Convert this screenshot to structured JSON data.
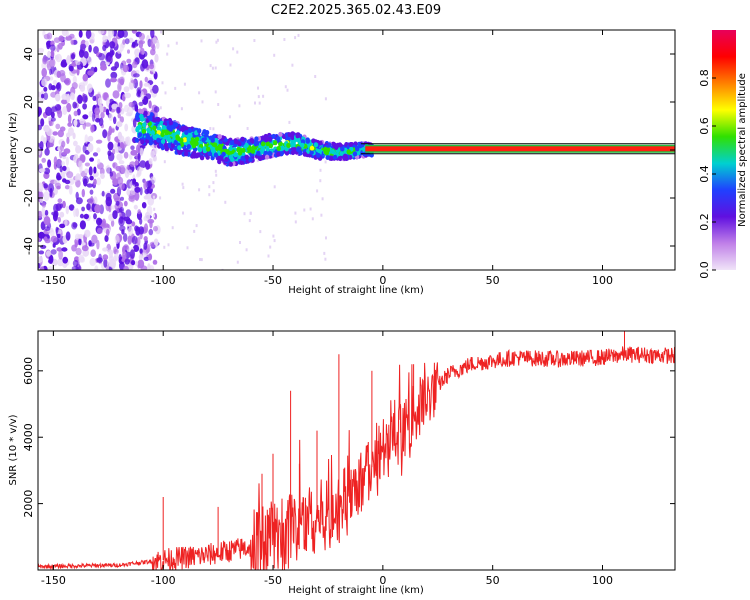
{
  "title": "C2E2.2025.365.02.43.E09",
  "colors": {
    "snr_line": "#ee2222",
    "colorbar_stops": [
      "#f0e4f8",
      "#c080e8",
      "#6010e0",
      "#2040ff",
      "#00d0d0",
      "#30e000",
      "#ffff00",
      "#ff8000",
      "#ff0000",
      "#e8005a"
    ]
  },
  "chart_data": [
    {
      "type": "heatmap",
      "name": "spectrogram",
      "xlabel": "Height of straight line (km)",
      "ylabel": "Frequency (Hz)",
      "xlim": [
        -157,
        133
      ],
      "ylim": [
        -50,
        50
      ],
      "xticks": [
        -150,
        -100,
        -50,
        0,
        50,
        100
      ],
      "yticks": [
        -40,
        -20,
        0,
        20,
        40
      ],
      "colorbar": {
        "label": "Normalized spectral amplitude",
        "range": [
          0,
          1
        ],
        "ticks": [
          0.0,
          0.2,
          0.4,
          0.6,
          0.8
        ]
      },
      "ridge": [
        {
          "x": -112,
          "y": 10
        },
        {
          "x": -100,
          "y": 7
        },
        {
          "x": -90,
          "y": 4
        },
        {
          "x": -80,
          "y": 2
        },
        {
          "x": -70,
          "y": -1
        },
        {
          "x": -60,
          "y": 0
        },
        {
          "x": -50,
          "y": 2
        },
        {
          "x": -40,
          "y": 3
        },
        {
          "x": -30,
          "y": 0
        },
        {
          "x": -20,
          "y": -1
        },
        {
          "x": -10,
          "y": 0
        },
        {
          "x": 0,
          "y": 0.5
        },
        {
          "x": 133,
          "y": 0.5
        }
      ],
      "noise_region_x": [
        -157,
        -105
      ],
      "grid": false
    },
    {
      "type": "line",
      "name": "snr",
      "xlabel": "Height of straight line (km)",
      "ylabel": "SNR (10 * v/v)",
      "xlim": [
        -157,
        133
      ],
      "ylim": [
        0,
        7200
      ],
      "xticks": [
        -150,
        -100,
        -50,
        0,
        50,
        100
      ],
      "yticks": [
        2000,
        4000,
        6000
      ],
      "trend": [
        {
          "x": -157,
          "y": 100
        },
        {
          "x": -120,
          "y": 150
        },
        {
          "x": -100,
          "y": 300
        },
        {
          "x": -80,
          "y": 450
        },
        {
          "x": -60,
          "y": 700
        },
        {
          "x": -45,
          "y": 1200
        },
        {
          "x": -35,
          "y": 1500
        },
        {
          "x": -20,
          "y": 1800
        },
        {
          "x": -10,
          "y": 2700
        },
        {
          "x": 0,
          "y": 3500
        },
        {
          "x": 10,
          "y": 4300
        },
        {
          "x": 20,
          "y": 5200
        },
        {
          "x": 30,
          "y": 5900
        },
        {
          "x": 40,
          "y": 6200
        },
        {
          "x": 60,
          "y": 6400
        },
        {
          "x": 80,
          "y": 6350
        },
        {
          "x": 100,
          "y": 6400
        },
        {
          "x": 110,
          "y": 6500
        },
        {
          "x": 133,
          "y": 6450
        }
      ],
      "spikes": [
        {
          "x": -100,
          "y": 2200
        },
        {
          "x": -75,
          "y": 1900
        },
        {
          "x": -55,
          "y": 2900
        },
        {
          "x": -50,
          "y": 3500
        },
        {
          "x": -42,
          "y": 5400
        },
        {
          "x": -38,
          "y": 3200
        },
        {
          "x": -30,
          "y": 4200
        },
        {
          "x": -20,
          "y": 6500
        },
        {
          "x": -5,
          "y": 6000
        },
        {
          "x": 8,
          "y": 5000
        },
        {
          "x": 14,
          "y": 6200
        },
        {
          "x": 110,
          "y": 7200
        }
      ],
      "grid": false
    }
  ]
}
